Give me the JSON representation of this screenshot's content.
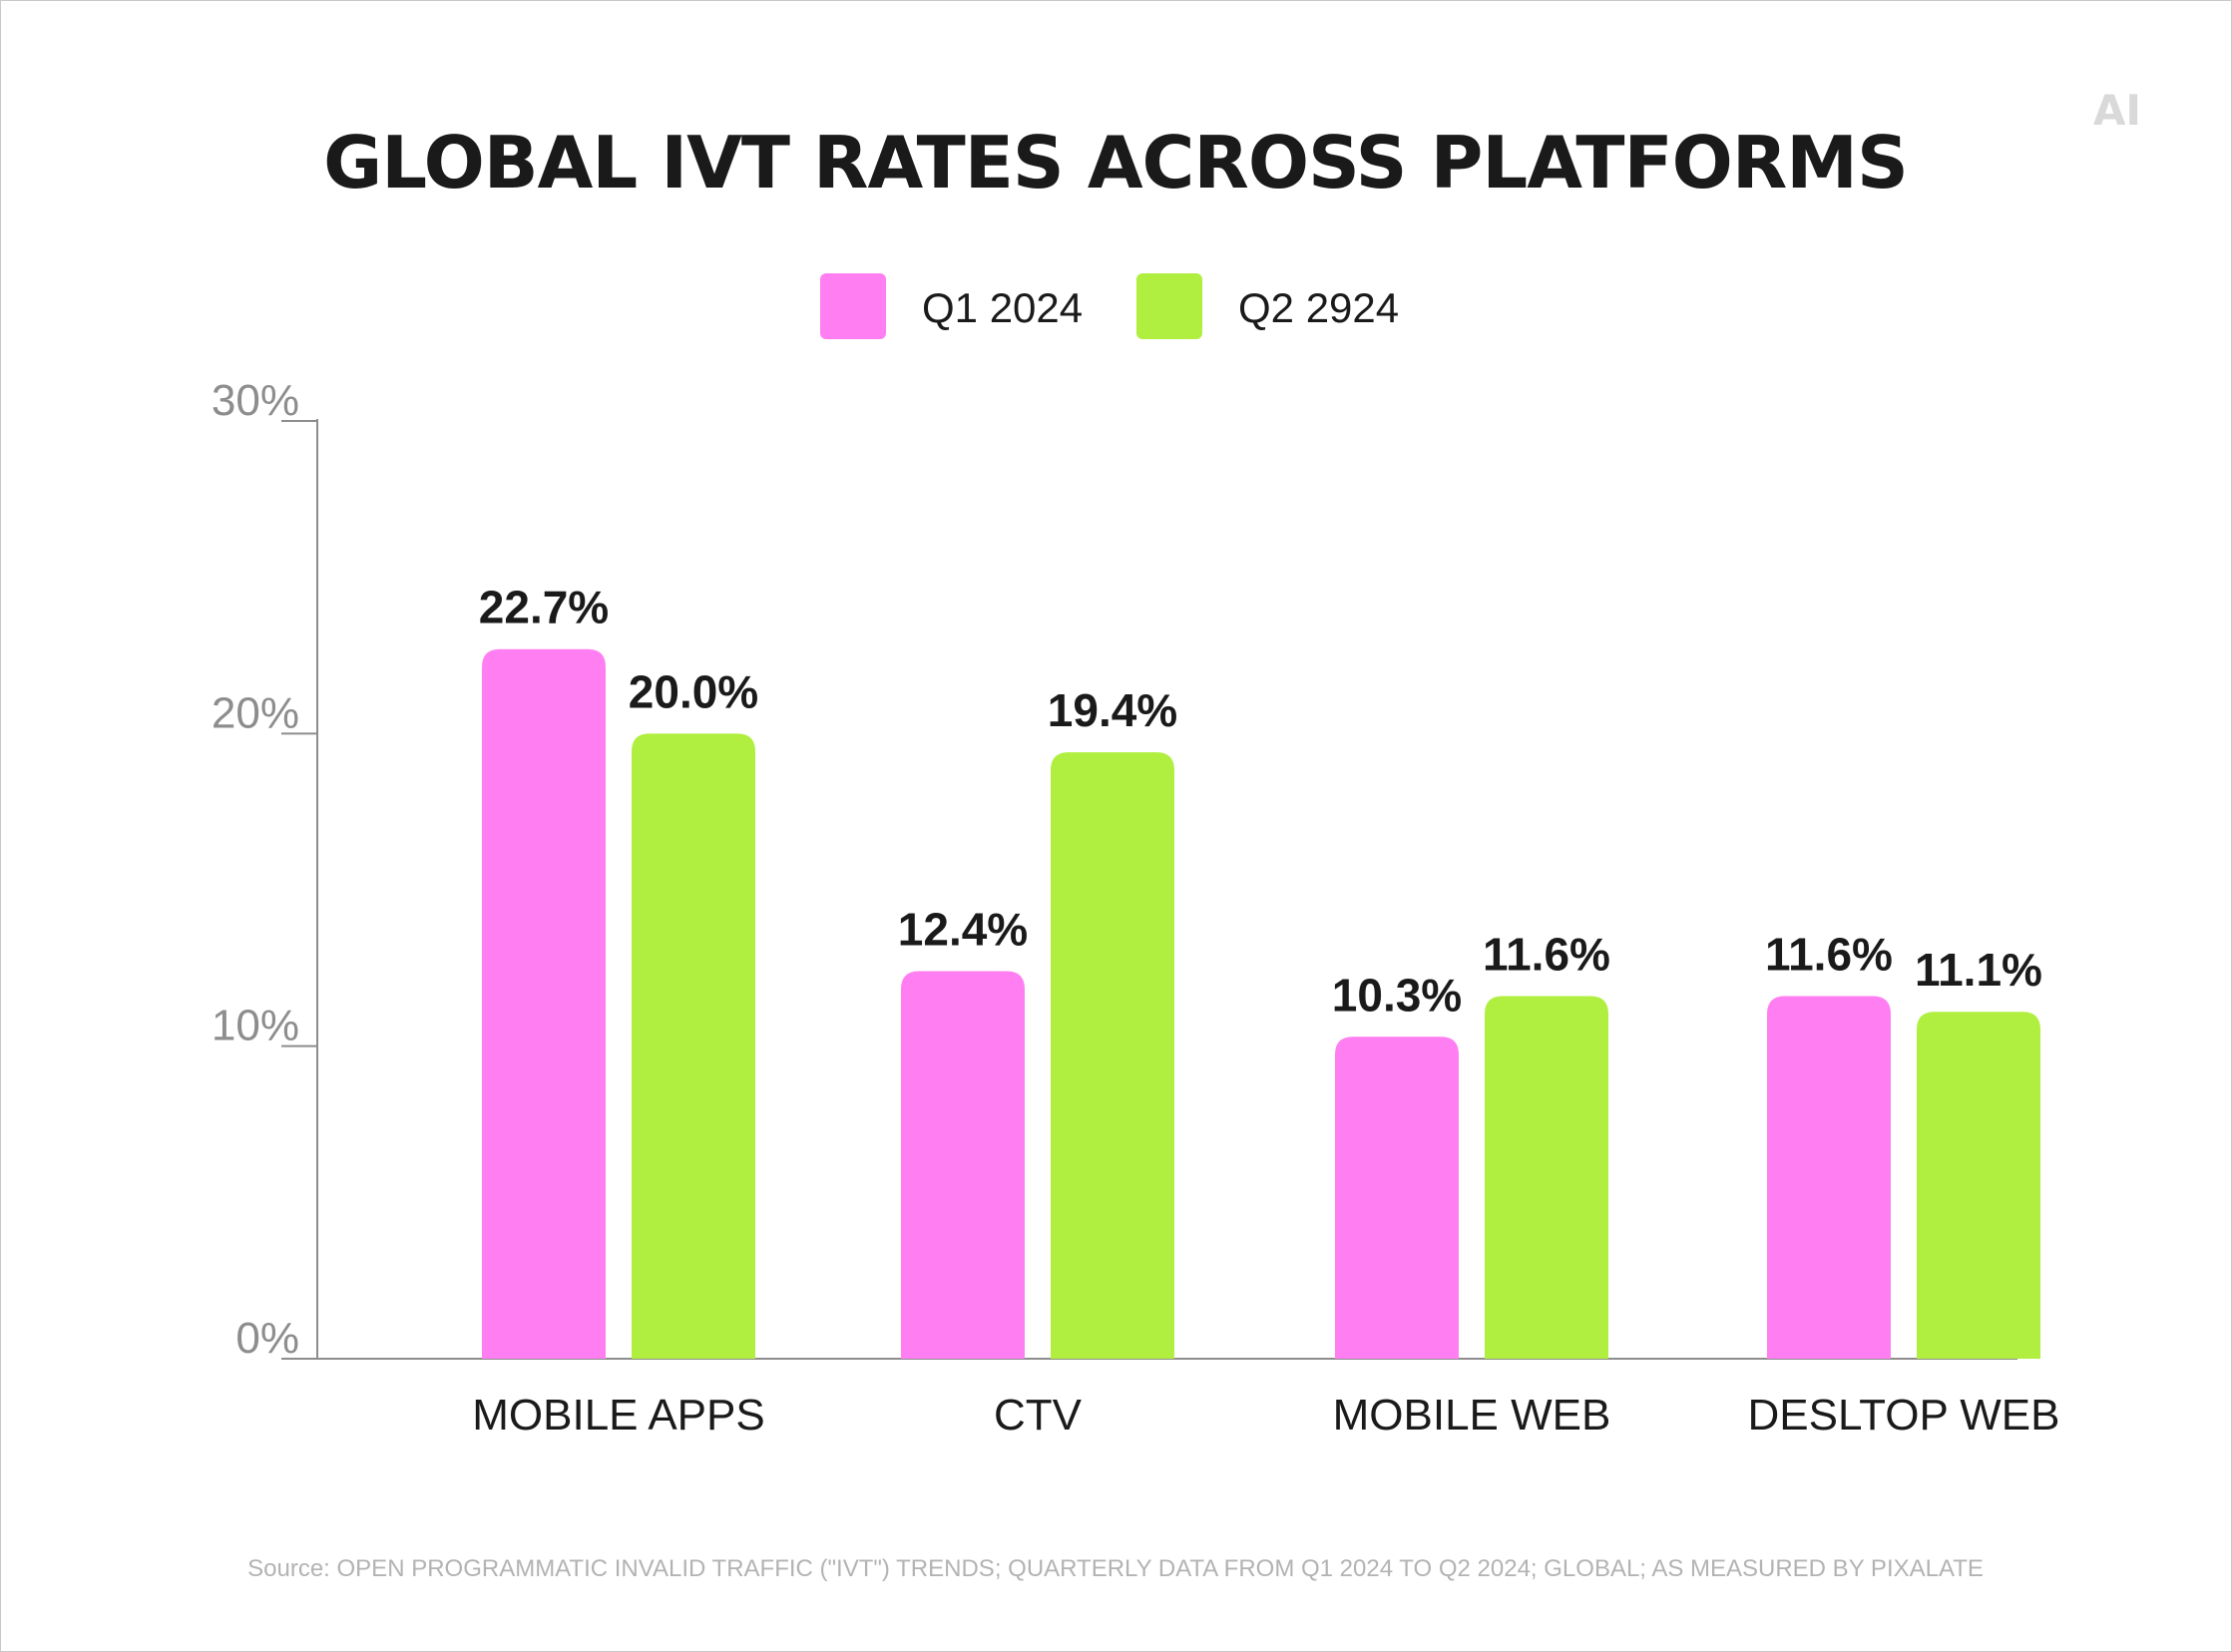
{
  "logo_text": "AI",
  "chart_data": {
    "type": "bar",
    "title": "GLOBAL IVT RATES ACROSS PLATFORMS",
    "categories": [
      "MOBILE APPS",
      "CTV",
      "MOBILE WEB",
      "DESLTOP WEB"
    ],
    "series": [
      {
        "name": "Q1 2024",
        "color": "#ff7ff2",
        "values": [
          22.7,
          12.4,
          10.3,
          11.6
        ],
        "labels": [
          "22.7%",
          "12.4%",
          "10.3%",
          "11.6%"
        ]
      },
      {
        "name": "Q2 2924",
        "color": "#b0ef3f",
        "values": [
          20.0,
          19.4,
          11.6,
          11.1
        ],
        "labels": [
          "20.0%",
          "19.4%",
          "11.6%",
          "11.1%"
        ]
      }
    ],
    "yticks": [
      0,
      10,
      20,
      30
    ],
    "ytick_labels": [
      "0%",
      "10%",
      "20%",
      "30%"
    ],
    "ylim": [
      0,
      30
    ],
    "legend_position": "top-center",
    "grid": false,
    "source": "Source: OPEN PROGRAMMATIC INVALID TRAFFIC (\"IVT\") TRENDS; QUARTERLY DATA FROM Q1 2024 TO Q2 2024; GLOBAL; AS MEASURED BY PIXALATE"
  }
}
